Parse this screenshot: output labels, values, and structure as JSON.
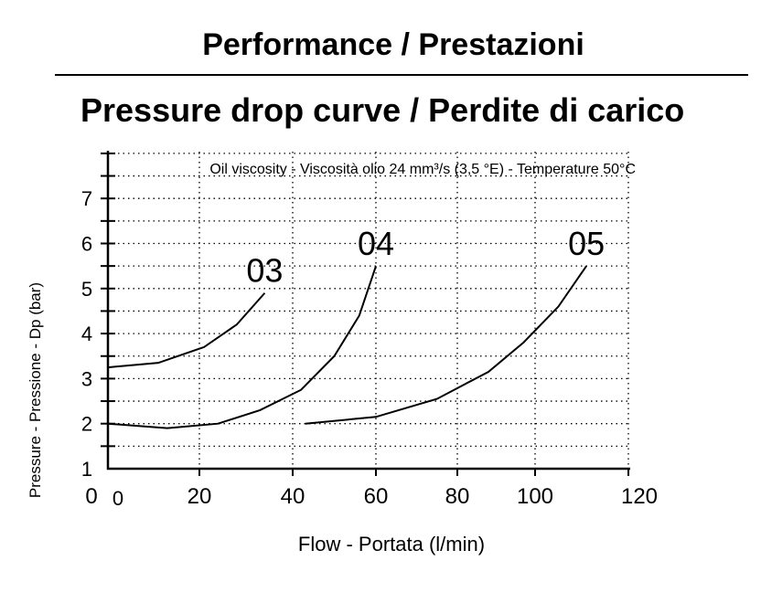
{
  "title": "Performance / Prestazioni",
  "subtitle": "Pressure drop curve / Perdite di carico",
  "chart_data": {
    "type": "line",
    "annotation": "Oil viscosity - Viscosità olio 24 mm³/s (3,5 °E) - Temperature 50°C",
    "xlabel": "Flow - Portata (l/min)",
    "ylabel": "Pressure - Pressione - Dp (bar)",
    "xlim": [
      0,
      120
    ],
    "ylim": [
      1,
      8
    ],
    "xticks": [
      "0",
      "20",
      "40",
      "60",
      "80",
      "100",
      "120"
    ],
    "extra_x_label": "0",
    "yticks": [
      "1",
      "2",
      "3",
      "4",
      "5",
      "6",
      "7"
    ],
    "grid": true,
    "series": [
      {
        "name": "03",
        "x": [
          0,
          11,
          21,
          28,
          34
        ],
        "y": [
          3.25,
          3.35,
          3.7,
          4.2,
          4.9
        ]
      },
      {
        "name": "04",
        "x": [
          0,
          13,
          24,
          33,
          42,
          50,
          56,
          60
        ],
        "y": [
          2.0,
          1.9,
          2.0,
          2.3,
          2.75,
          3.5,
          4.4,
          5.5
        ]
      },
      {
        "name": "05",
        "x": [
          43,
          60,
          75,
          88,
          97,
          105,
          111
        ],
        "y": [
          2.0,
          2.15,
          2.55,
          3.15,
          3.8,
          4.6,
          5.5
        ]
      }
    ]
  }
}
